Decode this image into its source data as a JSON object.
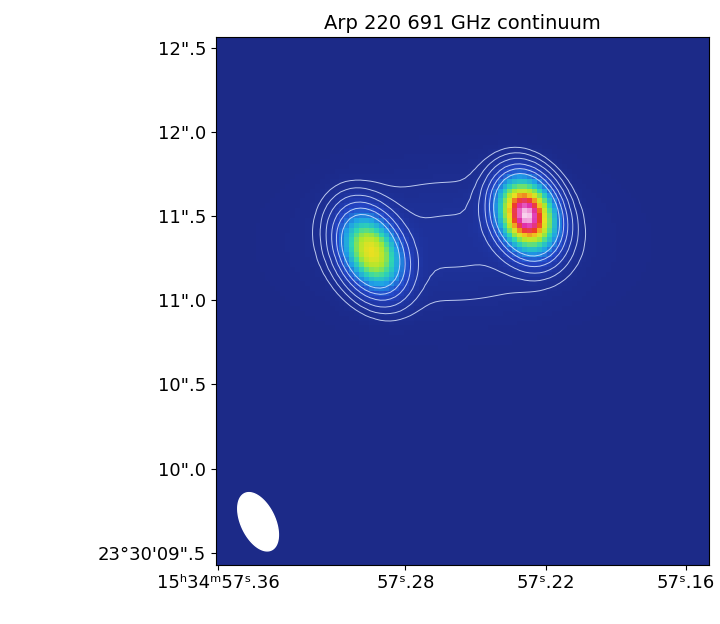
{
  "chart_data": {
    "type": "heatmap",
    "title": "Arp 220 691 GHz continuum",
    "xlim": [
      57.361,
      57.15
    ],
    "ylim": [
      9.43,
      12.56
    ],
    "xticks": [
      {
        "value": 57.36,
        "label": "15ʰ34ᵐ57ˢ.36"
      },
      {
        "value": 57.28,
        "label": "57ˢ.28"
      },
      {
        "value": 57.22,
        "label": "57ˢ.22"
      },
      {
        "value": 57.16,
        "label": "57ˢ.16"
      }
    ],
    "yticks": [
      {
        "value": 9.5,
        "label": "23°30'09\".5"
      },
      {
        "value": 10.0,
        "label": "10\".0"
      },
      {
        "value": 10.5,
        "label": "10\".5"
      },
      {
        "value": 11.0,
        "label": "11\".0"
      },
      {
        "value": 11.5,
        "label": "11\".5"
      },
      {
        "value": 12.0,
        "label": "12\".0"
      },
      {
        "value": 12.5,
        "label": "12\".5"
      }
    ],
    "sources": [
      {
        "ra": 57.295,
        "dec": 11.29,
        "peak": 0.62,
        "major": 0.36,
        "minor": 0.24,
        "pa": 25
      },
      {
        "ra": 57.228,
        "dec": 11.51,
        "peak": 1.0,
        "major": 0.33,
        "minor": 0.24,
        "pa": 20
      },
      {
        "ra": 57.26,
        "dec": 11.35,
        "peak": 0.04,
        "major": 1.3,
        "minor": 0.7,
        "pa": 90
      }
    ],
    "contour_levels": [
      0.02,
      0.035,
      0.06,
      0.1,
      0.15,
      0.22
    ],
    "color_range": [
      0,
      1.05
    ],
    "beam": {
      "ra": 57.343,
      "dec": 9.685,
      "major": 0.37,
      "minor": 0.2,
      "pa": 25
    }
  }
}
